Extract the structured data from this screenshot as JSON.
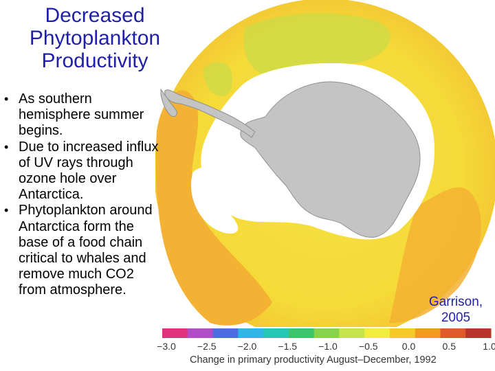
{
  "title": [
    "Decreased",
    "Phytoplankton",
    "Productivity"
  ],
  "bullets": [
    "As southern hemisphere summer begins.",
    "Due to increased influx of UV rays through ozone hole over Antarctica.",
    "Phytoplankton around Antarctica form the base of a food chain critical to whales and remove much CO2 from atmosphere."
  ],
  "credit": [
    "Garrison,",
    "2005"
  ],
  "scale": {
    "ticks": [
      "−3.0",
      "−2.5",
      "−2.0",
      "−1.5",
      "−1.0",
      "−0.5",
      "0.0",
      "0.5",
      "1.0"
    ],
    "colors": [
      "#e0337e",
      "#b24cc8",
      "#4d6de3",
      "#2fb6e6",
      "#27c7b5",
      "#3cc36b",
      "#86d44c",
      "#c6e34a",
      "#f2ec3c",
      "#f7c928",
      "#f29a1f",
      "#e05a2a",
      "#b8352a"
    ],
    "caption": "Change in primary productivity August–December, 1992"
  },
  "map_colors": {
    "ocean_yellow": "#f5dc3a",
    "ocean_orange": "#f3b130",
    "green_patch": "#c8dc46",
    "ice_white": "#ffffff",
    "land_gray": "#c3c3c3"
  }
}
